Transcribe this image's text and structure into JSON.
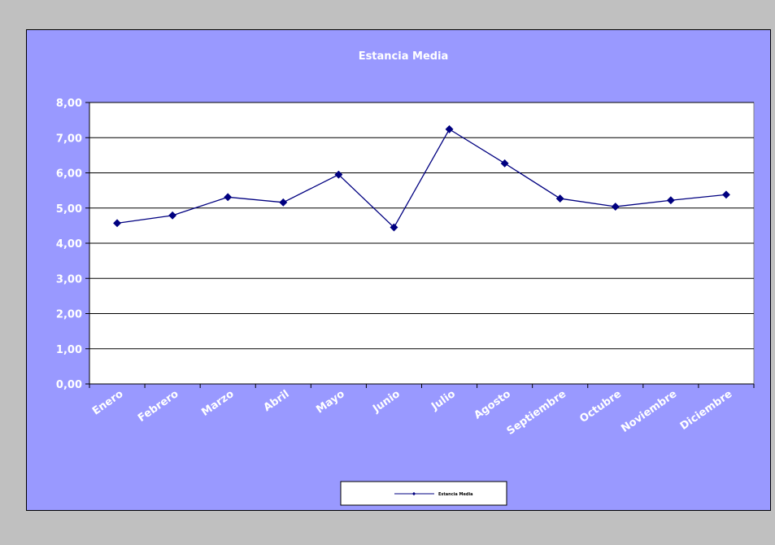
{
  "chart_data": {
    "type": "line",
    "title": "Estancia Media",
    "categories": [
      "Enero",
      "Febrero",
      "Marzo",
      "Abril",
      "Mayo",
      "Junio",
      "Julio",
      "Agosto",
      "Septiembre",
      "Octubre",
      "Noviembre",
      "Diciembre"
    ],
    "series": [
      {
        "name": "Estancia Media",
        "values": [
          4.57,
          4.79,
          5.31,
          5.16,
          5.95,
          4.45,
          7.24,
          6.27,
          5.27,
          5.04,
          5.22,
          5.38
        ],
        "color": "#000080"
      }
    ],
    "yticks": [
      "0,00",
      "1,00",
      "2,00",
      "3,00",
      "4,00",
      "5,00",
      "6,00",
      "7,00",
      "8,00"
    ],
    "ylim": [
      0,
      8
    ],
    "grid": true,
    "legend": "bottom-center",
    "colors": {
      "chart_area": "#9999ff",
      "plot_area": "#ffffff",
      "outer": "#c0c0c0",
      "line": "#000080"
    }
  }
}
